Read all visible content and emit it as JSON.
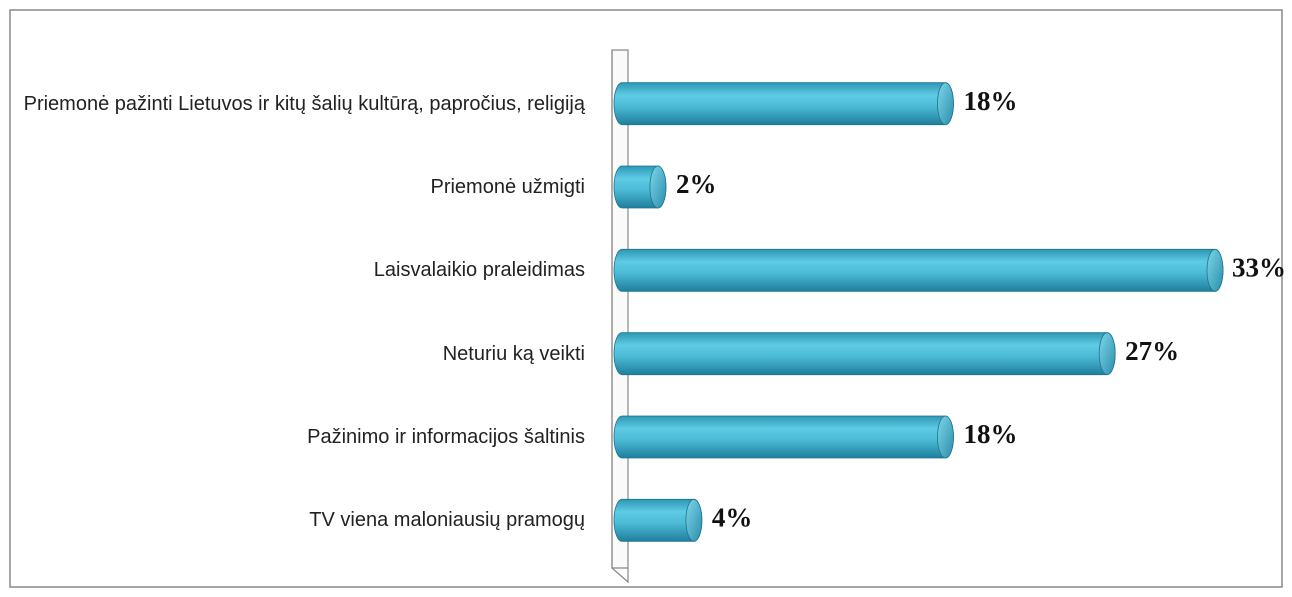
{
  "chart_data": {
    "type": "bar",
    "orientation": "horizontal",
    "categories": [
      "Priemonė pažinti Lietuvos ir kitų šalių kultūrą, papročius, religiją",
      "Priemonė užmigti",
      "Laisvalaikio praleidimas",
      "Neturiu ką veikti",
      "Pažinimo ir informacijos šaltinis",
      "TV viena maloniausių pramogų"
    ],
    "values": [
      18,
      2,
      33,
      27,
      18,
      4
    ],
    "value_labels": [
      "18%",
      "2%",
      "33%",
      "27%",
      "18%",
      "4%"
    ],
    "color": "#4bbfdb"
  }
}
